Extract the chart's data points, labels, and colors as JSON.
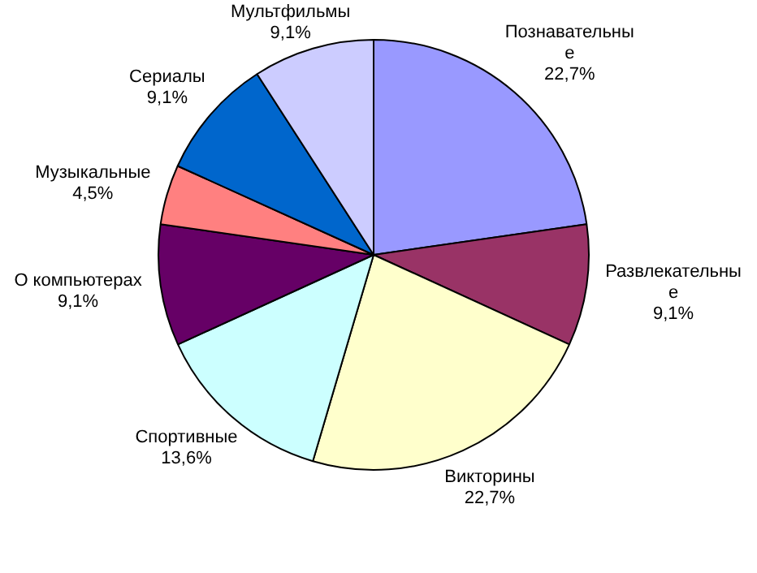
{
  "chart_data": {
    "type": "pie",
    "categories": [
      "Познавательные",
      "Развлекательные",
      "Викторины",
      "Спортивные",
      "О компьютерах",
      "Музыкальные",
      "Сериалы",
      "Мультфильмы"
    ],
    "values": [
      22.7,
      9.1,
      22.7,
      13.6,
      9.1,
      4.5,
      9.1,
      9.1
    ],
    "colors": [
      "#9999ff",
      "#993366",
      "#ffffcc",
      "#ccffff",
      "#660066",
      "#ff8080",
      "#0066cc",
      "#ccccff"
    ],
    "value_labels": [
      "22,7%",
      "9,1%",
      "22,7%",
      "13,6%",
      "9,1%",
      "4,5%",
      "9,1%",
      "9,1%"
    ],
    "legend": false
  }
}
